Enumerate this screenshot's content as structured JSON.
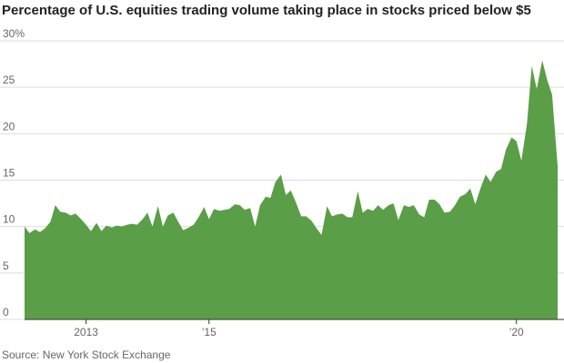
{
  "chart_data": {
    "type": "area",
    "title": "Percentage of U.S. equities trading volume taking place in stocks priced below $5",
    "source": "Source: New York Stock Exchange",
    "color": "#5a9e47",
    "grid": true,
    "x": [
      2012.0,
      2012.08,
      2012.17,
      2012.25,
      2012.33,
      2012.42,
      2012.5,
      2012.58,
      2012.67,
      2012.75,
      2012.83,
      2012.92,
      2013.0,
      2013.08,
      2013.17,
      2013.25,
      2013.33,
      2013.42,
      2013.5,
      2013.58,
      2013.67,
      2013.75,
      2013.83,
      2013.92,
      2014.0,
      2014.08,
      2014.17,
      2014.25,
      2014.33,
      2014.42,
      2014.5,
      2014.58,
      2014.67,
      2014.75,
      2014.83,
      2014.92,
      2015.0,
      2015.08,
      2015.17,
      2015.25,
      2015.33,
      2015.42,
      2015.5,
      2015.58,
      2015.67,
      2015.75,
      2015.83,
      2015.92,
      2016.0,
      2016.08,
      2016.17,
      2016.25,
      2016.33,
      2016.42,
      2016.5,
      2016.58,
      2016.67,
      2016.75,
      2016.83,
      2016.92,
      2017.0,
      2017.08,
      2017.17,
      2017.25,
      2017.33,
      2017.42,
      2017.5,
      2017.58,
      2017.67,
      2017.75,
      2017.83,
      2017.92,
      2018.0,
      2018.08,
      2018.17,
      2018.25,
      2018.33,
      2018.42,
      2018.5,
      2018.58,
      2018.67,
      2018.75,
      2018.83,
      2018.92,
      2019.0,
      2019.08,
      2019.17,
      2019.25,
      2019.33,
      2019.42,
      2019.5,
      2019.58,
      2019.67,
      2019.75,
      2019.83,
      2019.92,
      2020.0,
      2020.08,
      2020.17,
      2020.25,
      2020.33,
      2020.42,
      2020.5,
      2020.58,
      2020.67
    ],
    "values": [
      10.0,
      9.3,
      9.7,
      9.4,
      9.8,
      10.5,
      12.3,
      11.6,
      11.5,
      11.2,
      11.4,
      10.8,
      10.2,
      9.5,
      10.4,
      9.5,
      10.1,
      9.9,
      10.1,
      10.0,
      10.2,
      10.3,
      10.2,
      10.8,
      11.5,
      10.0,
      12.2,
      10.0,
      11.2,
      11.5,
      10.5,
      9.6,
      9.9,
      10.2,
      11.0,
      12.1,
      10.8,
      11.9,
      11.7,
      11.8,
      11.9,
      12.4,
      12.3,
      11.8,
      12.0,
      10.0,
      12.3,
      13.2,
      13.1,
      14.8,
      15.6,
      13.4,
      13.9,
      12.5,
      11.1,
      11.1,
      10.6,
      9.8,
      9.1,
      12.2,
      11.1,
      11.3,
      11.4,
      11.0,
      11.0,
      13.8,
      11.5,
      11.9,
      11.7,
      12.3,
      11.8,
      12.3,
      12.5,
      10.7,
      12.3,
      12.1,
      12.3,
      11.3,
      11.0,
      12.9,
      12.9,
      12.4,
      11.5,
      11.6,
      12.3,
      13.2,
      13.5,
      14.1,
      12.4,
      14.2,
      15.6,
      14.8,
      15.9,
      16.2,
      18.3,
      19.6,
      19.2,
      17.1,
      21.0,
      27.3,
      24.8,
      27.9,
      25.8,
      24.2,
      16.5
    ],
    "xlim": [
      2012.0,
      2020.67
    ],
    "xticks": [
      {
        "value": 2013,
        "label": "2013"
      },
      {
        "value": 2015,
        "label": "’15"
      },
      {
        "value": 2020,
        "label": "’20"
      }
    ],
    "ylim": [
      0,
      30
    ],
    "yticks": [
      0,
      5,
      10,
      15,
      20,
      25,
      {
        "value": 30,
        "label": "30%"
      }
    ]
  }
}
